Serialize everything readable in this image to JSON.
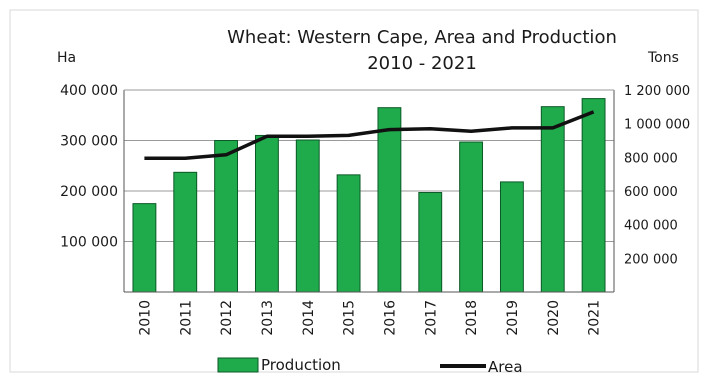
{
  "chart_data": {
    "type": "bar",
    "title": "Wheat: Western Cape, Area and Production",
    "subtitle": "2010 - 2021",
    "categories": [
      "2010",
      "2011",
      "2012",
      "2013",
      "2014",
      "2015",
      "2016",
      "2017",
      "2018",
      "2019",
      "2020",
      "2021"
    ],
    "left_axis": {
      "unit_label": "Ha",
      "ylim": [
        0,
        400000
      ],
      "ticks": [
        100000,
        200000,
        300000,
        400000
      ],
      "tick_labels": [
        "100 000",
        "200 000",
        "300 000",
        "400 000"
      ]
    },
    "right_axis": {
      "unit_label": "Tons",
      "ylim": [
        0,
        1200000
      ],
      "ticks": [
        200000,
        400000,
        600000,
        800000,
        1000000,
        1200000
      ],
      "tick_labels": [
        "200 000",
        "400 000",
        "600 000",
        "800 000",
        "1 000 000",
        "1 200 000"
      ]
    },
    "series": [
      {
        "name": "Production",
        "type": "bar",
        "axis": "left",
        "color": "#1faa4b",
        "values": [
          175000,
          237000,
          300000,
          310000,
          301000,
          232000,
          365000,
          197000,
          297000,
          218000,
          367000,
          383000
        ]
      },
      {
        "name": "Area",
        "type": "line",
        "axis": "right",
        "color": "#111111",
        "values": [
          795000,
          795000,
          815000,
          925000,
          925000,
          930000,
          965000,
          970000,
          955000,
          975000,
          975000,
          1070000
        ]
      }
    ],
    "grid": true,
    "legend": "bottom"
  }
}
